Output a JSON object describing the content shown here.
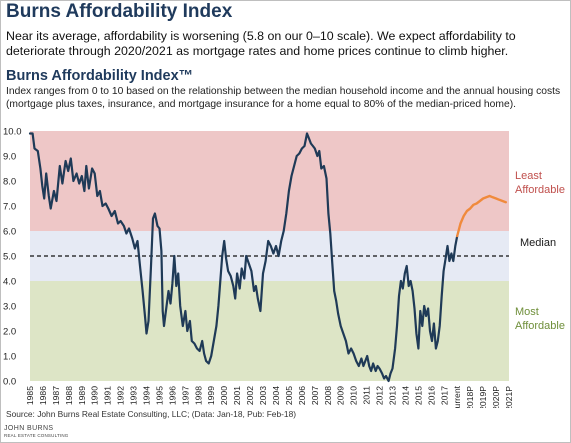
{
  "page": {
    "title": "Burns Affordability Index",
    "intro": "Near its average, affordability is worsening (5.8 on our 0–10 scale). We expect affordability to deteriorate through 2020/2021 as mortgage rates and home prices continue to climb higher.",
    "source": "Source: John Burns Real Estate Consulting, LLC; (Data: Jan-18, Pub: Feb-18)",
    "logo_text": "JOHN BURNS",
    "logo_sub": "REAL ESTATE CONSULTING"
  },
  "colors": {
    "least_band": "#eec7c7",
    "median_band": "#e6eaf4",
    "most_band": "#dde5c6",
    "history_line": "#1f3a57",
    "forecast_line": "#f08a3c",
    "least_label": "#c0504d",
    "most_label": "#6f8f3a",
    "median_label": "#1a1a1a",
    "title": "#1f3a5c"
  },
  "chart_data": {
    "type": "line",
    "title": "Burns Affordability Index™",
    "subtitle": "Index ranges from 0 to 10 based on the relationship between the median household income and the annual housing costs (mortgage plus taxes, insurance, and mortgage insurance for a home equal to 80% of the median-priced home).",
    "ylim": [
      0,
      10
    ],
    "y_ticks": [
      "0.0",
      "1.0",
      "2.0",
      "3.0",
      "4.0",
      "5.0",
      "6.0",
      "7.0",
      "8.0",
      "9.0",
      "10.0"
    ],
    "x_tick_labels": [
      "1985",
      "1986",
      "1987",
      "1988",
      "1989",
      "1990",
      "1991",
      "1992",
      "1993",
      "1994",
      "1995",
      "1996",
      "1997",
      "1998",
      "1999",
      "2000",
      "2001",
      "2002",
      "2003",
      "2004",
      "2005",
      "2006",
      "2007",
      "2008",
      "2009",
      "2010",
      "2011",
      "2012",
      "2013",
      "2014",
      "2015",
      "2016",
      "2017",
      "Current",
      "2018P",
      "2019P",
      "2020P",
      "2021P"
    ],
    "grid": false,
    "bands": [
      {
        "from": 6,
        "to": 10,
        "label_lines": [
          "Least",
          "Affordable"
        ]
      },
      {
        "from": 4,
        "to": 6,
        "label_lines": []
      },
      {
        "from": 0,
        "to": 4,
        "label_lines": [
          "Most",
          "Affordable"
        ]
      }
    ],
    "median_value": 5.0,
    "median_label": "Median",
    "series": [
      {
        "kind": "history",
        "points": [
          [
            1985.0,
            9.9
          ],
          [
            1985.2,
            9.9
          ],
          [
            1985.35,
            9.3
          ],
          [
            1985.6,
            9.2
          ],
          [
            1985.8,
            8.5
          ],
          [
            1985.95,
            7.8
          ],
          [
            1986.1,
            7.3
          ],
          [
            1986.25,
            8.3
          ],
          [
            1986.45,
            7.4
          ],
          [
            1986.6,
            6.9
          ],
          [
            1986.85,
            7.6
          ],
          [
            1987.05,
            7.2
          ],
          [
            1987.3,
            8.6
          ],
          [
            1987.5,
            7.9
          ],
          [
            1987.75,
            8.8
          ],
          [
            1987.95,
            8.4
          ],
          [
            1988.15,
            8.9
          ],
          [
            1988.35,
            8.0
          ],
          [
            1988.6,
            8.3
          ],
          [
            1988.8,
            7.9
          ],
          [
            1989.0,
            8.2
          ],
          [
            1989.2,
            7.6
          ],
          [
            1989.35,
            8.6
          ],
          [
            1989.55,
            7.7
          ],
          [
            1989.8,
            8.5
          ],
          [
            1990.0,
            8.3
          ],
          [
            1990.2,
            7.4
          ],
          [
            1990.4,
            7.6
          ],
          [
            1990.6,
            7.0
          ],
          [
            1990.85,
            7.1
          ],
          [
            1991.05,
            6.9
          ],
          [
            1991.3,
            6.6
          ],
          [
            1991.55,
            6.8
          ],
          [
            1991.8,
            6.3
          ],
          [
            1992.0,
            6.4
          ],
          [
            1992.25,
            6.2
          ],
          [
            1992.45,
            5.9
          ],
          [
            1992.65,
            6.1
          ],
          [
            1992.9,
            5.7
          ],
          [
            1993.1,
            5.3
          ],
          [
            1993.3,
            5.6
          ],
          [
            1993.5,
            4.6
          ],
          [
            1993.7,
            3.6
          ],
          [
            1993.9,
            2.5
          ],
          [
            1994.0,
            1.9
          ],
          [
            1994.15,
            2.4
          ],
          [
            1994.35,
            4.6
          ],
          [
            1994.5,
            6.5
          ],
          [
            1994.65,
            6.7
          ],
          [
            1994.85,
            6.2
          ],
          [
            1995.0,
            6.1
          ],
          [
            1995.15,
            5.2
          ],
          [
            1995.25,
            2.8
          ],
          [
            1995.35,
            2.2
          ],
          [
            1995.5,
            2.8
          ],
          [
            1995.7,
            3.6
          ],
          [
            1995.85,
            3.1
          ],
          [
            1996.0,
            3.9
          ],
          [
            1996.15,
            5.0
          ],
          [
            1996.3,
            3.8
          ],
          [
            1996.45,
            4.3
          ],
          [
            1996.6,
            3.0
          ],
          [
            1996.8,
            2.2
          ],
          [
            1997.0,
            2.8
          ],
          [
            1997.15,
            2.0
          ],
          [
            1997.35,
            2.4
          ],
          [
            1997.5,
            1.6
          ],
          [
            1997.7,
            1.5
          ],
          [
            1997.9,
            1.3
          ],
          [
            1998.1,
            1.2
          ],
          [
            1998.3,
            1.6
          ],
          [
            1998.45,
            1.1
          ],
          [
            1998.6,
            0.8
          ],
          [
            1998.8,
            0.7
          ],
          [
            1999.0,
            1.0
          ],
          [
            1999.2,
            1.6
          ],
          [
            1999.4,
            2.2
          ],
          [
            1999.55,
            3.0
          ],
          [
            1999.7,
            4.0
          ],
          [
            1999.85,
            5.0
          ],
          [
            2000.0,
            5.6
          ],
          [
            2000.15,
            4.9
          ],
          [
            2000.3,
            4.4
          ],
          [
            2000.5,
            4.2
          ],
          [
            2000.7,
            3.8
          ],
          [
            2000.85,
            3.3
          ],
          [
            2001.0,
            4.3
          ],
          [
            2001.2,
            3.7
          ],
          [
            2001.35,
            4.5
          ],
          [
            2001.55,
            4.1
          ],
          [
            2001.7,
            5.0
          ],
          [
            2001.9,
            4.7
          ],
          [
            2002.1,
            4.4
          ],
          [
            2002.3,
            3.6
          ],
          [
            2002.45,
            3.8
          ],
          [
            2002.6,
            3.3
          ],
          [
            2002.8,
            2.8
          ],
          [
            2003.0,
            4.3
          ],
          [
            2003.2,
            4.8
          ],
          [
            2003.4,
            5.6
          ],
          [
            2003.6,
            5.4
          ],
          [
            2003.8,
            5.1
          ],
          [
            2004.0,
            5.4
          ],
          [
            2004.2,
            5.0
          ],
          [
            2004.4,
            5.6
          ],
          [
            2004.6,
            6.0
          ],
          [
            2004.8,
            6.7
          ],
          [
            2005.0,
            7.6
          ],
          [
            2005.2,
            8.2
          ],
          [
            2005.4,
            8.6
          ],
          [
            2005.6,
            9.0
          ],
          [
            2005.8,
            9.1
          ],
          [
            2006.0,
            9.3
          ],
          [
            2006.2,
            9.4
          ],
          [
            2006.4,
            9.9
          ],
          [
            2006.55,
            9.7
          ],
          [
            2006.7,
            9.5
          ],
          [
            2006.85,
            9.4
          ],
          [
            2007.0,
            9.3
          ],
          [
            2007.2,
            9.0
          ],
          [
            2007.35,
            9.2
          ],
          [
            2007.5,
            8.5
          ],
          [
            2007.7,
            8.6
          ],
          [
            2007.9,
            8.1
          ],
          [
            2008.05,
            6.7
          ],
          [
            2008.2,
            5.9
          ],
          [
            2008.35,
            4.7
          ],
          [
            2008.5,
            3.6
          ],
          [
            2008.65,
            3.2
          ],
          [
            2008.8,
            2.7
          ],
          [
            2009.0,
            2.2
          ],
          [
            2009.2,
            1.9
          ],
          [
            2009.4,
            1.6
          ],
          [
            2009.6,
            1.1
          ],
          [
            2009.8,
            1.3
          ],
          [
            2010.0,
            1.1
          ],
          [
            2010.2,
            0.8
          ],
          [
            2010.4,
            0.6
          ],
          [
            2010.6,
            0.9
          ],
          [
            2010.75,
            0.6
          ],
          [
            2010.9,
            0.8
          ],
          [
            2011.05,
            1.0
          ],
          [
            2011.2,
            0.6
          ],
          [
            2011.35,
            0.4
          ],
          [
            2011.5,
            0.7
          ],
          [
            2011.7,
            0.4
          ],
          [
            2011.85,
            0.6
          ],
          [
            2012.0,
            0.5
          ],
          [
            2012.2,
            0.3
          ],
          [
            2012.35,
            0.1
          ],
          [
            2012.5,
            0.2
          ],
          [
            2012.7,
            0.0
          ],
          [
            2012.85,
            0.3
          ],
          [
            2013.0,
            0.5
          ],
          [
            2013.2,
            1.3
          ],
          [
            2013.35,
            2.2
          ],
          [
            2013.5,
            3.4
          ],
          [
            2013.65,
            4.0
          ],
          [
            2013.8,
            3.7
          ],
          [
            2013.95,
            4.3
          ],
          [
            2014.1,
            4.6
          ],
          [
            2014.25,
            3.8
          ],
          [
            2014.4,
            4.0
          ],
          [
            2014.55,
            3.6
          ],
          [
            2014.7,
            2.9
          ],
          [
            2014.85,
            1.9
          ],
          [
            2015.0,
            1.3
          ],
          [
            2015.15,
            2.8
          ],
          [
            2015.3,
            2.2
          ],
          [
            2015.45,
            3.0
          ],
          [
            2015.6,
            2.6
          ],
          [
            2015.75,
            2.9
          ],
          [
            2015.9,
            2.0
          ],
          [
            2016.05,
            1.6
          ],
          [
            2016.2,
            2.3
          ],
          [
            2016.35,
            1.3
          ],
          [
            2016.5,
            1.6
          ],
          [
            2016.65,
            2.2
          ],
          [
            2016.8,
            3.4
          ],
          [
            2016.95,
            4.4
          ],
          [
            2017.1,
            4.9
          ],
          [
            2017.25,
            5.4
          ],
          [
            2017.4,
            4.8
          ],
          [
            2017.55,
            5.1
          ],
          [
            2017.7,
            4.8
          ],
          [
            2017.85,
            5.4
          ],
          [
            2018.0,
            5.8
          ]
        ]
      },
      {
        "kind": "forecast",
        "points": [
          [
            2018.0,
            5.8
          ],
          [
            2018.25,
            6.3
          ],
          [
            2018.5,
            6.6
          ],
          [
            2018.75,
            6.8
          ],
          [
            2019.0,
            6.9
          ],
          [
            2019.25,
            7.05
          ],
          [
            2019.5,
            7.1
          ],
          [
            2019.75,
            7.2
          ],
          [
            2020.0,
            7.3
          ],
          [
            2020.25,
            7.35
          ],
          [
            2020.5,
            7.4
          ],
          [
            2020.75,
            7.35
          ],
          [
            2021.0,
            7.3
          ],
          [
            2021.25,
            7.25
          ],
          [
            2021.5,
            7.2
          ],
          [
            2021.75,
            7.15
          ]
        ]
      }
    ]
  }
}
